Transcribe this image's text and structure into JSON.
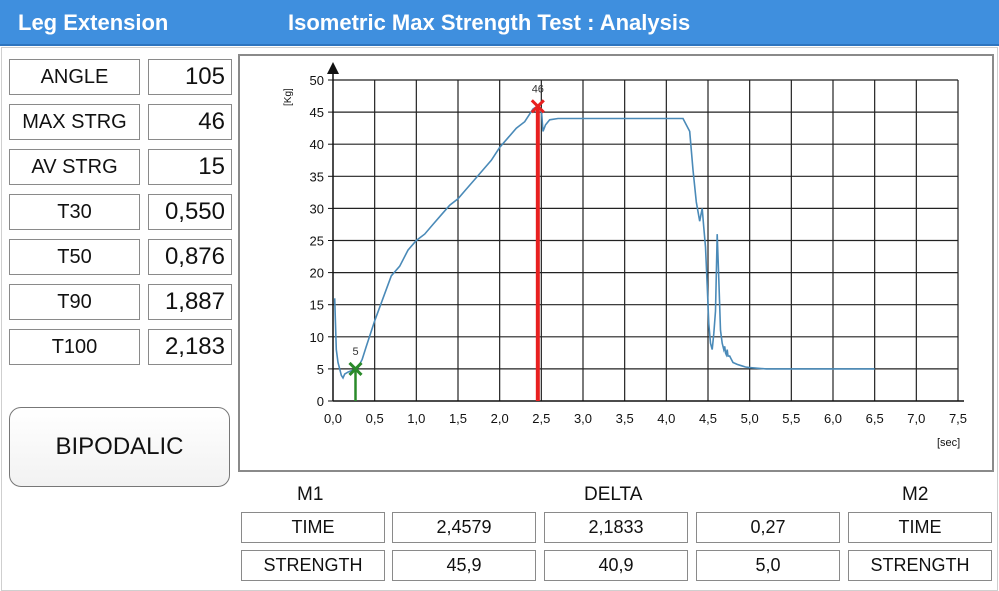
{
  "header": {
    "app_name": "Leg Extension",
    "title": "Isometric Max Strength Test : Analysis"
  },
  "metrics": [
    {
      "label": "ANGLE",
      "value": "105"
    },
    {
      "label": "MAX STRG",
      "value": "46"
    },
    {
      "label": "AV STRG",
      "value": "15"
    },
    {
      "label": "T30",
      "value": "0,550"
    },
    {
      "label": "T50",
      "value": "0,876"
    },
    {
      "label": "T90",
      "value": "1,887"
    },
    {
      "label": "T100",
      "value": "2,183"
    }
  ],
  "mode_button": {
    "label": "BIPODALIC"
  },
  "results": {
    "headers": {
      "m1": "M1",
      "delta": "DELTA",
      "m2": "M2"
    },
    "rows": [
      {
        "label_left": "TIME",
        "m1": "2,4579",
        "delta": "2,1833",
        "m2": "0,27",
        "label_right": "TIME"
      },
      {
        "label_left": "STRENGTH",
        "m1": "45,9",
        "delta": "40,9",
        "m2": "5,0",
        "label_right": "STRENGTH"
      }
    ]
  },
  "chart_data": {
    "type": "line",
    "title": "",
    "xlabel": "[sec]",
    "ylabel": "[Kg]",
    "xlim": [
      0,
      7.5
    ],
    "ylim": [
      0,
      50
    ],
    "x_ticks": [
      "0,0",
      "0,5",
      "1,0",
      "1,5",
      "2,0",
      "2,5",
      "3,0",
      "3,5",
      "4,0",
      "4,5",
      "5,0",
      "5,5",
      "6,0",
      "6,5",
      "7,0",
      "7,5"
    ],
    "y_ticks": [
      "0",
      "5",
      "10",
      "15",
      "20",
      "25",
      "30",
      "35",
      "40",
      "45",
      "50"
    ],
    "grid": true,
    "line_color": "#4a8ab8",
    "series": [
      {
        "x": [
          0.02,
          0.03,
          0.04,
          0.06,
          0.08,
          0.1,
          0.12,
          0.14,
          0.18,
          0.22,
          0.25,
          0.28,
          0.3,
          0.35,
          0.4,
          0.5,
          0.6,
          0.7,
          0.8,
          0.9,
          1.0,
          1.1,
          1.2,
          1.3,
          1.4,
          1.5,
          1.6,
          1.7,
          1.8,
          1.9,
          2.0,
          2.1,
          2.2,
          2.3,
          2.4,
          2.45,
          2.5,
          2.52,
          2.55,
          2.6,
          2.7,
          3.0,
          3.5,
          4.0,
          4.2,
          4.28,
          4.32,
          4.36,
          4.4,
          4.43,
          4.45,
          4.47,
          4.49,
          4.51,
          4.53,
          4.55,
          4.57,
          4.59,
          4.61,
          4.63,
          4.65,
          4.67,
          4.69,
          4.7,
          4.71,
          4.72,
          4.73,
          4.74,
          4.76,
          4.78,
          4.8,
          4.85,
          4.9,
          4.95,
          5.0,
          5.1,
          5.2,
          5.3,
          5.5,
          6.0,
          6.5
        ],
        "y": [
          16,
          12,
          8,
          6,
          5,
          4,
          3.6,
          4.2,
          4.5,
          4.7,
          4.8,
          5,
          5.2,
          6.5,
          8.5,
          12.5,
          16,
          19.5,
          21,
          23.5,
          25,
          26,
          27.5,
          29,
          30.5,
          31.5,
          33,
          34.5,
          36,
          37.5,
          39.5,
          41,
          42.5,
          43.5,
          45.5,
          45.9,
          45.5,
          42,
          43,
          43.8,
          44,
          44,
          44,
          44,
          44,
          42,
          36,
          31,
          28,
          30,
          27,
          24,
          18,
          12,
          9,
          8,
          10.5,
          14,
          26,
          19,
          11,
          9,
          8,
          8.5,
          7.5,
          7.2,
          8,
          7,
          7,
          6.5,
          6,
          5.7,
          5.5,
          5.3,
          5.2,
          5.1,
          5,
          5,
          5,
          5,
          5
        ]
      }
    ],
    "markers": [
      {
        "name": "M1",
        "x": 2.4579,
        "y": 45.9,
        "label": "46",
        "color": "#e82020"
      },
      {
        "name": "M2",
        "x": 0.27,
        "y": 5.0,
        "label": "5",
        "color": "#2a8a2a"
      }
    ]
  }
}
